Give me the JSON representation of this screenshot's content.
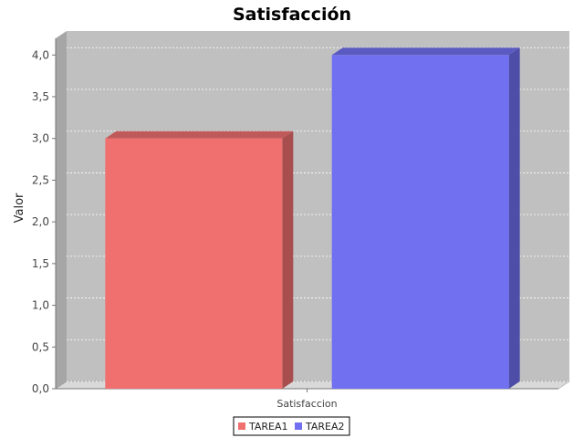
{
  "chart_data": {
    "type": "bar",
    "title": "Satisfacción",
    "xlabel": "",
    "ylabel": "Valor",
    "categories": [
      "Satisfaccion"
    ],
    "series": [
      {
        "name": "TAREA1",
        "values": [
          3.0
        ],
        "color": "#f07070"
      },
      {
        "name": "TAREA2",
        "values": [
          4.0
        ],
        "color": "#7070f0"
      }
    ],
    "ylim": [
      0,
      4.2
    ],
    "yticks": [
      0,
      0.5,
      1.0,
      1.5,
      2.0,
      2.5,
      3.0,
      3.5,
      4.0
    ],
    "ytick_labels": [
      "0,0",
      "0,5",
      "1,0",
      "1,5",
      "2,0",
      "2,5",
      "3,0",
      "3,5",
      "4,0"
    ],
    "grid": true,
    "legend": "bottom",
    "style": "3d"
  }
}
